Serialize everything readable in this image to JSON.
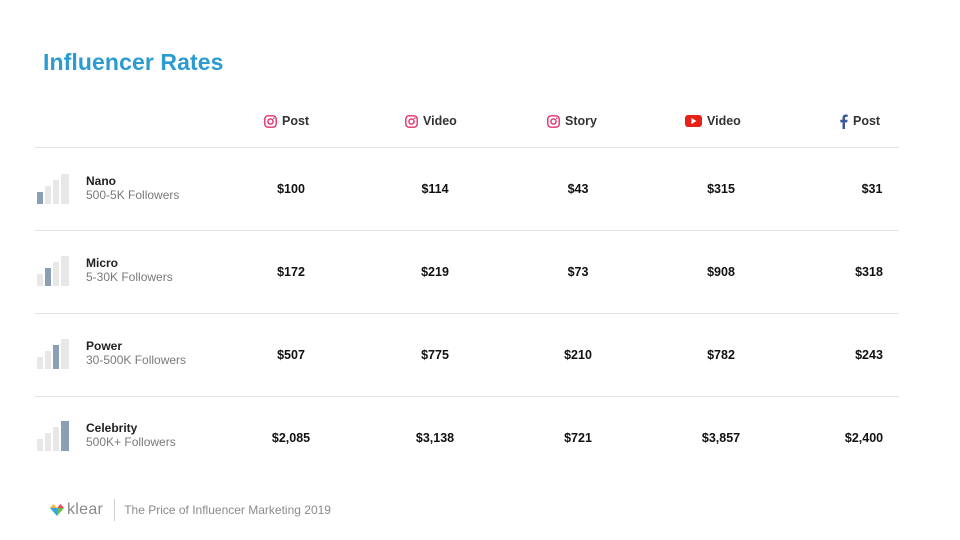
{
  "title": "Influencer Rates",
  "columns": [
    {
      "platform": "instagram",
      "icon": "instagram-icon",
      "label": "Post",
      "color": "#e1306c"
    },
    {
      "platform": "instagram",
      "icon": "instagram-icon",
      "label": "Video",
      "color": "#e1306c"
    },
    {
      "platform": "instagram",
      "icon": "instagram-icon",
      "label": "Story",
      "color": "#e1306c"
    },
    {
      "platform": "youtube",
      "icon": "youtube-icon",
      "label": "Video",
      "color": "#e62117"
    },
    {
      "platform": "facebook",
      "icon": "facebook-icon",
      "label": "Post",
      "color": "#3b5998"
    }
  ],
  "rows": [
    {
      "name": "Nano",
      "followers": "500-5K Followers",
      "level": 1,
      "values": [
        "$100",
        "$114",
        "$43",
        "$315",
        "$31"
      ]
    },
    {
      "name": "Micro",
      "followers": "5-30K Followers",
      "level": 2,
      "values": [
        "$172",
        "$219",
        "$73",
        "$908",
        "$318"
      ]
    },
    {
      "name": "Power",
      "followers": "30-500K Followers",
      "level": 3,
      "values": [
        "$507",
        "$775",
        "$210",
        "$782",
        "$243"
      ]
    },
    {
      "name": "Celebrity",
      "followers": "500K+ Followers",
      "level": 4,
      "values": [
        "$2,085",
        "$3,138",
        "$721",
        "$3,857",
        "$2,400"
      ]
    }
  ],
  "footer": {
    "brand": "klear",
    "tagline": "The Price of Influencer Marketing 2019"
  },
  "colors": {
    "title": "#2b9bd0",
    "bar_active": "#8a9fb4",
    "bar_inactive": "#e7e7e7"
  }
}
